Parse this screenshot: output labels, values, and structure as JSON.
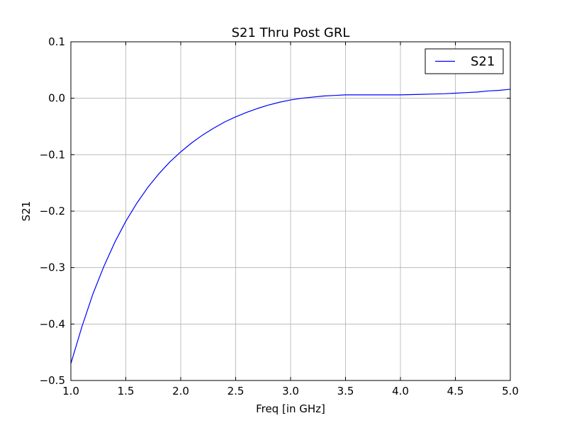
{
  "chart_data": {
    "type": "line",
    "title": "S21 Thru Post GRL",
    "xlabel": "Freq [in GHz]",
    "ylabel": "S21",
    "xlim": [
      1.0,
      5.0
    ],
    "ylim": [
      -0.5,
      0.1
    ],
    "x_ticks": [
      1.0,
      1.5,
      2.0,
      2.5,
      3.0,
      3.5,
      4.0,
      4.5,
      5.0
    ],
    "x_tick_labels": [
      "1.0",
      "1.5",
      "2.0",
      "2.5",
      "3.0",
      "3.5",
      "4.0",
      "4.5",
      "5.0"
    ],
    "y_ticks": [
      -0.5,
      -0.4,
      -0.3,
      -0.2,
      -0.1,
      0.0,
      0.1
    ],
    "y_tick_labels": [
      "−0.5",
      "−0.4",
      "−0.3",
      "−0.2",
      "−0.1",
      "0.0",
      "0.1"
    ],
    "grid": true,
    "legend_position": "top-right",
    "series": [
      {
        "name": "S21",
        "color": "#0000ff",
        "x": [
          1.0,
          1.1,
          1.2,
          1.3,
          1.4,
          1.5,
          1.6,
          1.7,
          1.8,
          1.9,
          2.0,
          2.1,
          2.2,
          2.3,
          2.4,
          2.5,
          2.6,
          2.7,
          2.8,
          2.9,
          3.0,
          3.1,
          3.2,
          3.3,
          3.4,
          3.5,
          3.6,
          3.7,
          3.8,
          3.9,
          4.0,
          4.1,
          4.2,
          4.3,
          4.4,
          4.5,
          4.6,
          4.7,
          4.8,
          4.9,
          5.0
        ],
        "y": [
          -0.47,
          -0.405,
          -0.347,
          -0.298,
          -0.255,
          -0.218,
          -0.186,
          -0.158,
          -0.134,
          -0.113,
          -0.095,
          -0.079,
          -0.065,
          -0.053,
          -0.042,
          -0.033,
          -0.025,
          -0.018,
          -0.012,
          -0.007,
          -0.003,
          0.0,
          0.002,
          0.004,
          0.005,
          0.006,
          0.006,
          0.006,
          0.006,
          0.006,
          0.006,
          0.0065,
          0.007,
          0.0075,
          0.008,
          0.009,
          0.01,
          0.011,
          0.013,
          0.014,
          0.016
        ]
      }
    ]
  }
}
